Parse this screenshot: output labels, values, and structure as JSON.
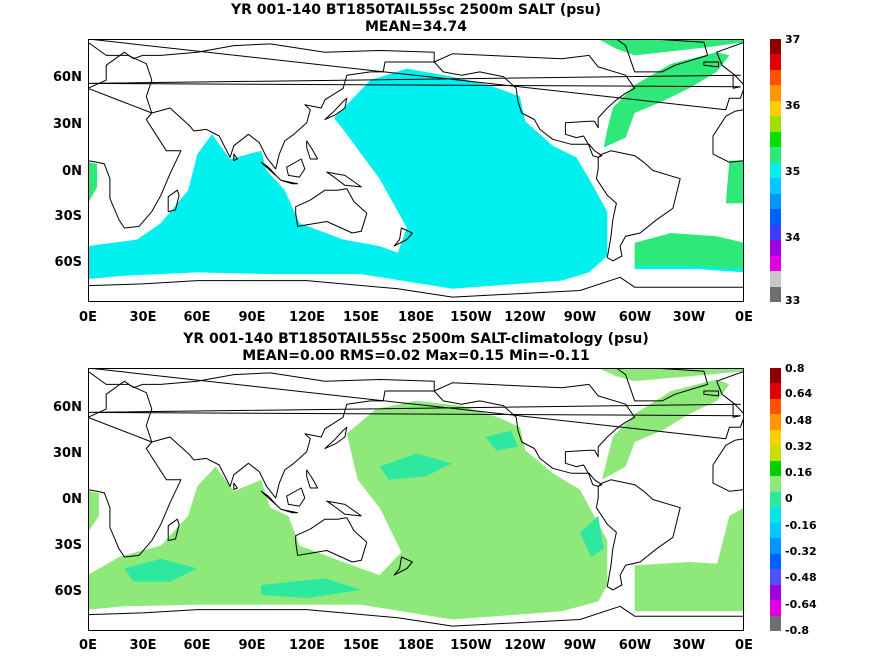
{
  "panels": [
    {
      "title_line1": "YR 001-140 BT1850TAIL55sc 2500m SALT (psu)",
      "title_line2": "MEAN=34.74",
      "fill_color": "#00f0f0",
      "edge_color": "#2ee87a",
      "colorbar": {
        "colors": [
          "#6e6e6e",
          "#c8c8c8",
          "#e000e0",
          "#a000e0",
          "#3c3cff",
          "#0060ff",
          "#0096ff",
          "#00c8ff",
          "#00f0f0",
          "#2ee87a",
          "#00e000",
          "#a0e000",
          "#ffd000",
          "#ff9600",
          "#ff5000",
          "#e00000",
          "#8c0000"
        ],
        "ticks": [
          "33",
          "34",
          "35",
          "36",
          "37"
        ]
      }
    },
    {
      "title_line1": "YR 001-140 BT1850TAIL55sc 2500m SALT-climatology (psu)",
      "title_line2": "MEAN=0.00   RMS=0.02   Max=0.15   Min=-0.11",
      "fill_color": "#8ee87a",
      "edge_color": "#2ee8a0",
      "colorbar": {
        "colors": [
          "#6e6e6e",
          "#e000e0",
          "#a000e0",
          "#5050ff",
          "#0060ff",
          "#0096ff",
          "#00c8ff",
          "#00e6e6",
          "#2ee8a0",
          "#8ee87a",
          "#00d000",
          "#c8e000",
          "#ffd000",
          "#ff9600",
          "#ff5000",
          "#e00000",
          "#8c0000"
        ],
        "ticks": [
          "0.8",
          "0.64",
          "0.48",
          "0.32",
          "0.16",
          "0",
          "-0.16",
          "-0.32",
          "-0.48",
          "-0.64",
          "-0.8"
        ]
      }
    }
  ],
  "lat_labels": [
    "60N",
    "30N",
    "0N",
    "30S",
    "60S"
  ],
  "lon_labels": [
    "0E",
    "30E",
    "60E",
    "90E",
    "120E",
    "150E",
    "180E",
    "150W",
    "120W",
    "90W",
    "60W",
    "30W",
    "0E"
  ]
}
